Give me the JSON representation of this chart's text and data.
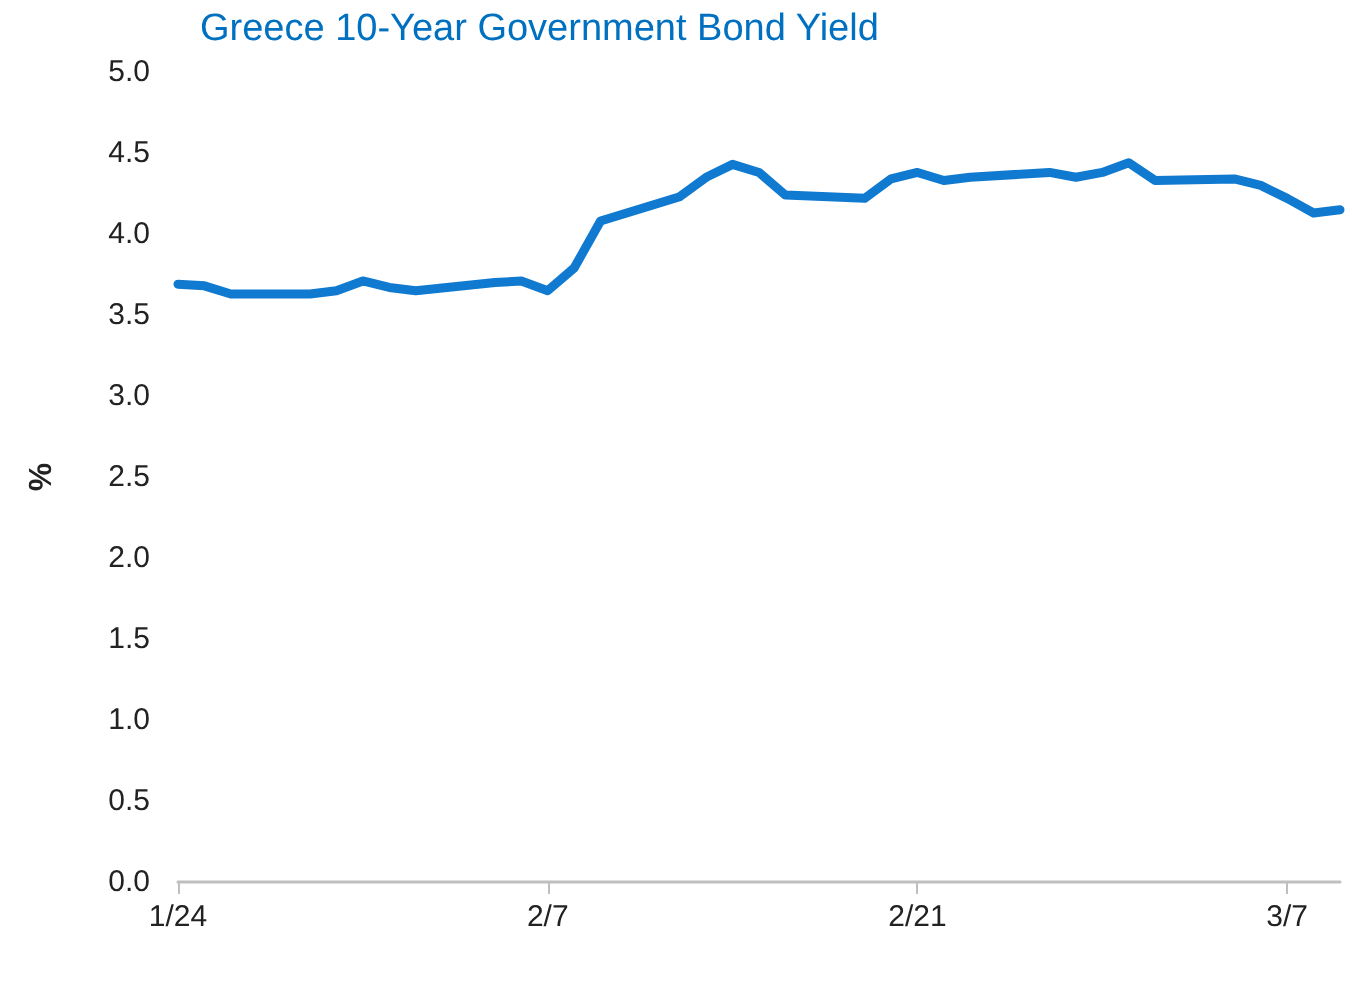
{
  "chart_data": {
    "type": "line",
    "title": "Greece 10-Year Government Bond Yield",
    "ylabel": "%",
    "x": [
      "--01-24",
      "--01-25",
      "--01-26",
      "--01-29",
      "--01-30",
      "--01-31",
      "--02-01",
      "--02-02",
      "--02-05",
      "--02-06",
      "--02-07",
      "--02-08",
      "--02-09",
      "--02-12",
      "--02-13",
      "--02-14",
      "--02-15",
      "--02-16",
      "--02-19",
      "--02-20",
      "--02-21",
      "--02-22",
      "--02-23",
      "--02-26",
      "--02-27",
      "--02-28",
      "--03-01",
      "--03-02",
      "--03-05",
      "--03-06",
      "--03-07",
      "--03-08",
      "--03-09"
    ],
    "series": [
      {
        "color": "#0f7ad0",
        "values": [
          3.69,
          3.68,
          3.63,
          3.63,
          3.65,
          3.71,
          3.67,
          3.65,
          3.7,
          3.71,
          3.65,
          3.79,
          4.08,
          4.23,
          4.35,
          4.43,
          4.38,
          4.24,
          4.22,
          4.34,
          4.38,
          4.33,
          4.35,
          4.38,
          4.35,
          4.38,
          4.44,
          4.33,
          4.34,
          4.3,
          4.22,
          4.13,
          4.15
        ]
      }
    ],
    "xlim": [
      "--01-24",
      "--03-09"
    ],
    "xticks": [
      {
        "value": "--01-24",
        "label": "1/24"
      },
      {
        "value": "--02-07",
        "label": "2/7"
      },
      {
        "value": "--02-21",
        "label": "2/21"
      },
      {
        "value": "--03-07",
        "label": "3/7"
      }
    ],
    "ylim": [
      0,
      5
    ],
    "yticks": [
      {
        "value": 0,
        "label": "0.0"
      },
      0.5,
      {
        "value": 1,
        "label": "1.0"
      },
      1.5,
      {
        "value": 2,
        "label": "2.0"
      },
      2.5,
      {
        "value": 3,
        "label": "3.0"
      },
      3.5,
      {
        "value": 4,
        "label": "4.0"
      },
      4.5,
      {
        "value": 5,
        "label": "5.0"
      }
    ],
    "grid": false,
    "marker": "none",
    "line_style": "solid"
  }
}
